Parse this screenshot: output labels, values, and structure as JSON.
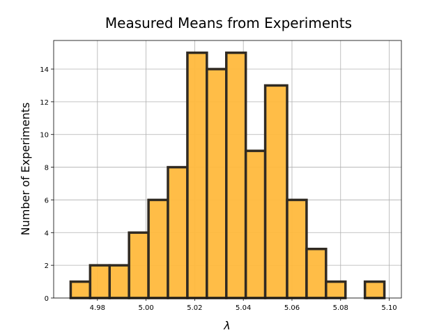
{
  "chart_data": {
    "type": "histogram",
    "title": "Measured Means from Experiments",
    "xlabel": "λ",
    "ylabel": "Number of Experiments",
    "bins": [
      4.969,
      4.977,
      4.985,
      4.993,
      5.001,
      5.009,
      5.017,
      5.025,
      5.033,
      5.041,
      5.049,
      5.058,
      5.066,
      5.074,
      5.082,
      5.09,
      5.098
    ],
    "values": [
      1,
      2,
      2,
      4,
      6,
      8,
      15,
      14,
      15,
      9,
      13,
      6,
      3,
      1,
      0,
      1
    ],
    "color": "#ffb93d",
    "edgecolor": "#302a22",
    "xlim": [
      4.962,
      5.105
    ],
    "xticks": [
      4.98,
      {
        "value": 5.0,
        "label": "5.00"
      },
      5.02,
      5.04,
      5.06,
      5.08,
      {
        "value": 5.1,
        "label": "5.10"
      }
    ],
    "ylim": [
      0,
      15.75
    ],
    "yticks": [
      0,
      2,
      4,
      6,
      8,
      10,
      12,
      14
    ],
    "grid": true
  }
}
